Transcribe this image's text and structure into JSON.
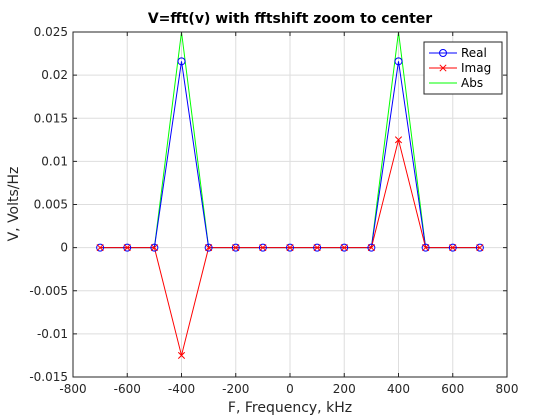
{
  "chart_data": {
    "type": "line",
    "title": "V=fft(v) with fftshift zoom to center",
    "xlabel": "F, Frequency, kHz",
    "ylabel": "V, Volts/Hz",
    "xlim": [
      -800,
      800
    ],
    "ylim": [
      -0.015,
      0.025
    ],
    "xticks": [
      "-800",
      "-600",
      "-400",
      "-200",
      "0",
      "200",
      "400",
      "600",
      "800"
    ],
    "yticks": [
      "-0.015",
      "-0.01",
      "-0.005",
      "0",
      "0.005",
      "0.01",
      "0.015",
      "0.02",
      "0.025"
    ],
    "grid": true,
    "legend_position": "top-right",
    "x": [
      -700,
      -600,
      -500,
      -400,
      -300,
      -200,
      -100,
      0,
      100,
      200,
      300,
      400,
      500,
      600,
      700
    ],
    "series": [
      {
        "name": "Real",
        "color": "#0000ff",
        "marker": "circle",
        "values": [
          0,
          0,
          0,
          0.0216,
          0,
          0,
          0,
          0,
          0,
          0,
          0,
          0.0216,
          0,
          0,
          0
        ]
      },
      {
        "name": "Imag",
        "color": "#ff0000",
        "marker": "x",
        "values": [
          0,
          0,
          0,
          -0.0125,
          0,
          0,
          0,
          0,
          0,
          0,
          0,
          0.0125,
          0,
          0,
          0
        ]
      },
      {
        "name": "Abs",
        "color": "#00ff00",
        "marker": "none",
        "values": [
          0,
          0,
          0,
          0.025,
          0,
          0,
          0,
          0,
          0,
          0,
          0,
          0.025,
          0,
          0,
          0
        ]
      }
    ]
  }
}
